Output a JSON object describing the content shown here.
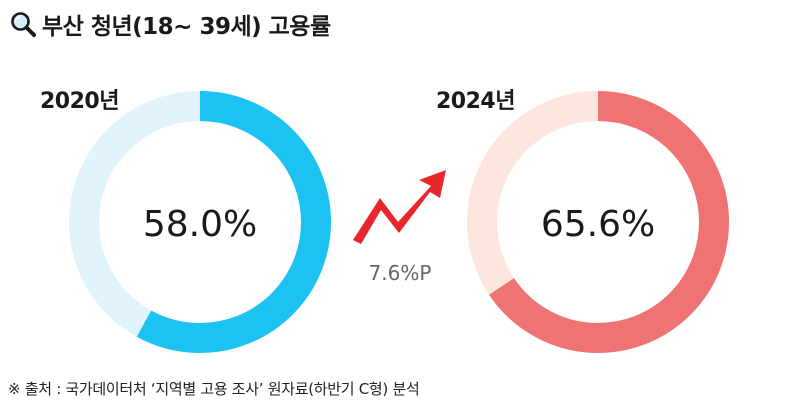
{
  "title": "부산 청년(18~ 39세) 고용률",
  "icons": {
    "title": "magnifier-icon",
    "change": "rising-arrow-icon"
  },
  "colors": {
    "series_2020": "#1cc3f2",
    "track_2020": "#e1f3fc",
    "series_2024": "#f07373",
    "track_2024": "#fde6dd",
    "arrow": "#e8262c",
    "change_text": "#666666"
  },
  "source": "※ 출처 : 국가데이터처 ‘지역별 고용 조사’ 원자료(하반기 C형) 분석",
  "chart_data": {
    "type": "donut",
    "title": "부산 청년(18~ 39세) 고용률",
    "unit": "%",
    "max": 100,
    "series": [
      {
        "name": "2020년",
        "value": 58.0,
        "label": "58.0%"
      },
      {
        "name": "2024년",
        "value": 65.6,
        "label": "65.6%"
      }
    ],
    "change": {
      "value": 7.6,
      "label": "7.6%P"
    }
  }
}
